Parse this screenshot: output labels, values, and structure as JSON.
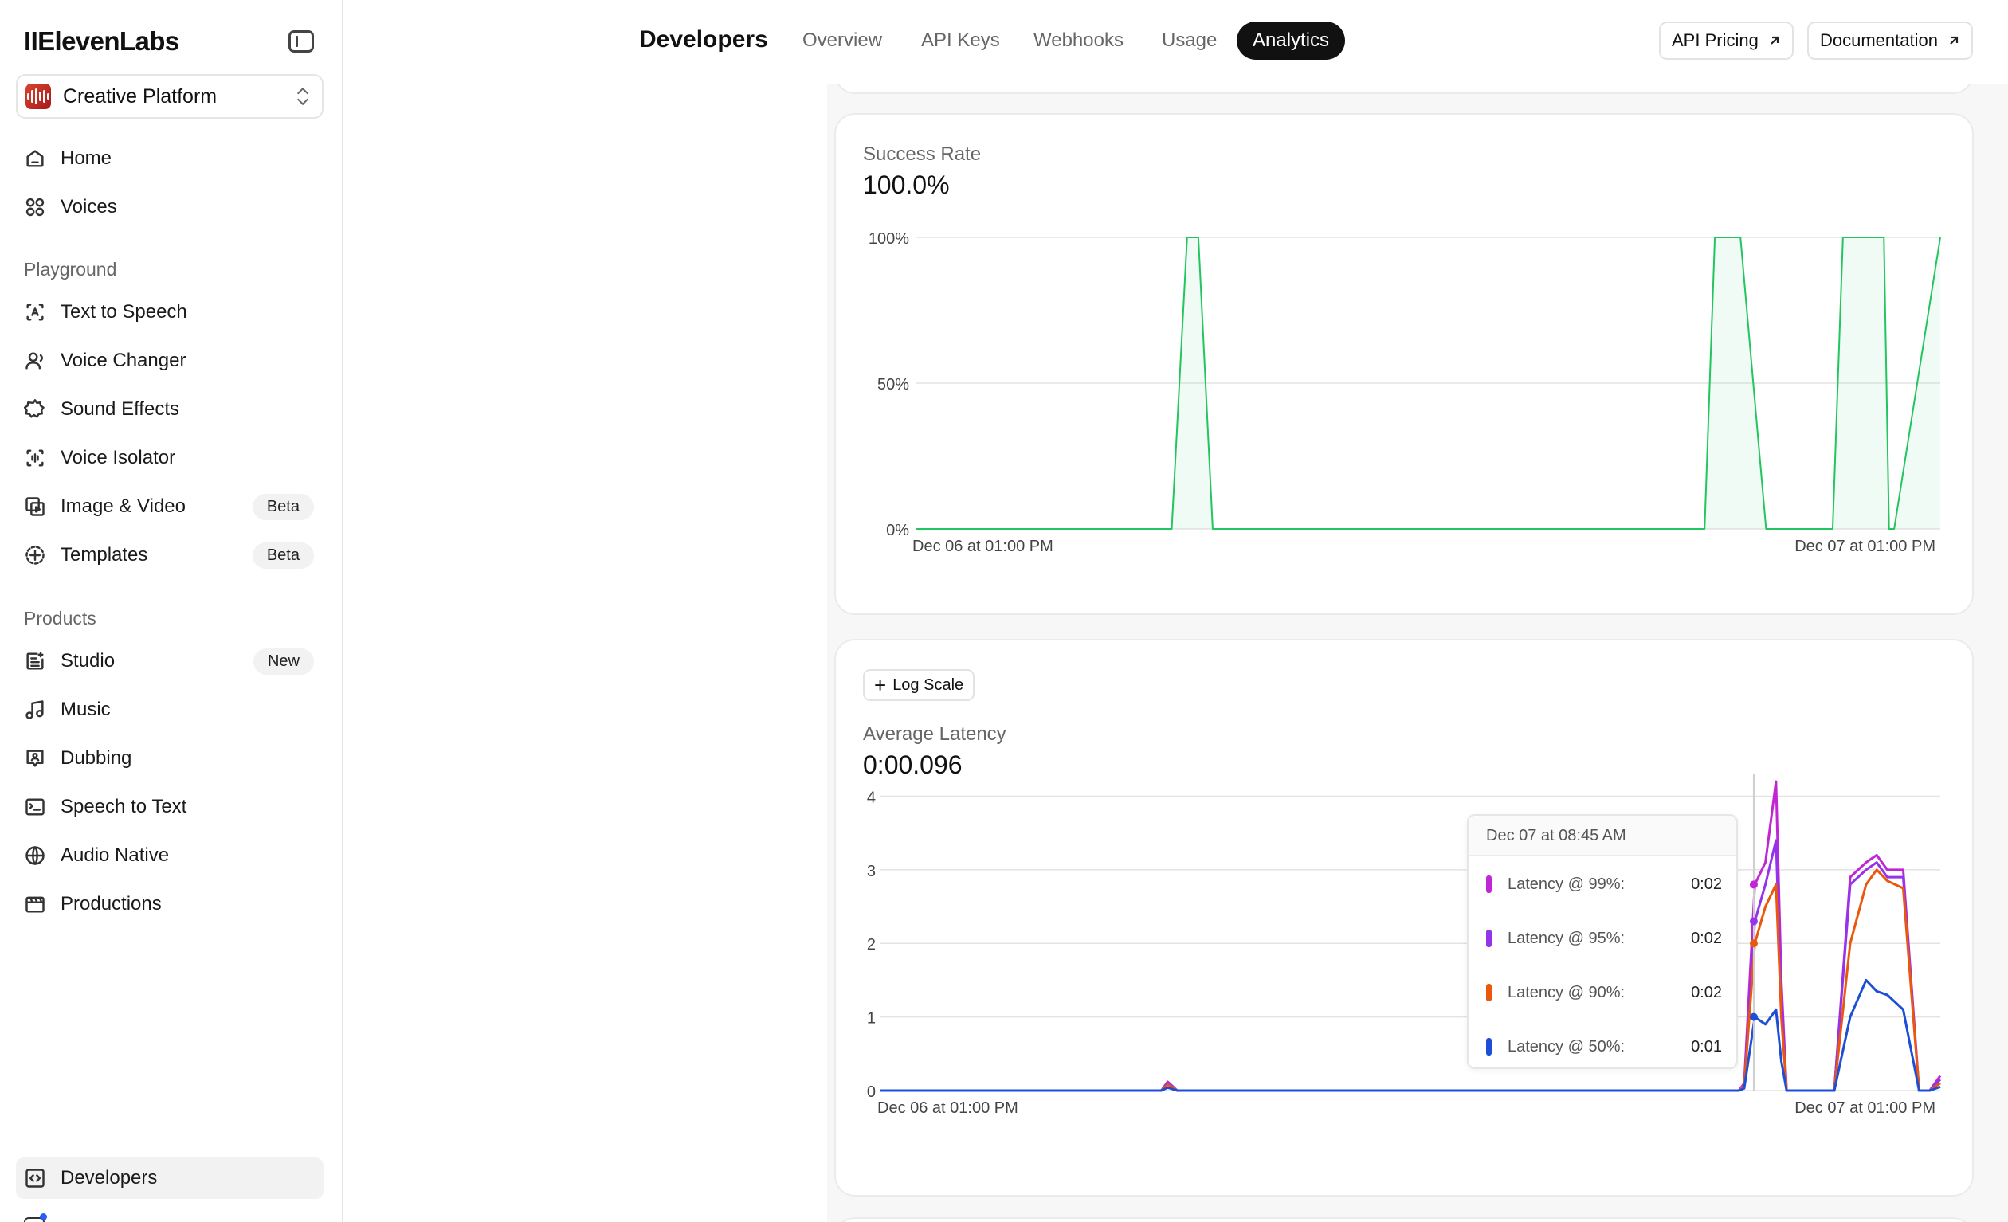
{
  "brand": {
    "logo": "IIElevenLabs"
  },
  "workspace": {
    "name": "Creative Platform"
  },
  "nav": {
    "top": [
      {
        "label": "Home",
        "icon": "home-icon"
      },
      {
        "label": "Voices",
        "icon": "voices-icon"
      }
    ],
    "playground_heading": "Playground",
    "playground": [
      {
        "label": "Text to Speech",
        "icon": "text-to-speech-icon"
      },
      {
        "label": "Voice Changer",
        "icon": "voice-changer-icon"
      },
      {
        "label": "Sound Effects",
        "icon": "sound-effects-icon"
      },
      {
        "label": "Voice Isolator",
        "icon": "voice-isolator-icon"
      },
      {
        "label": "Image & Video",
        "icon": "image-video-icon",
        "badge": "Beta"
      },
      {
        "label": "Templates",
        "icon": "templates-icon",
        "badge": "Beta"
      }
    ],
    "products_heading": "Products",
    "products": [
      {
        "label": "Studio",
        "icon": "studio-icon",
        "badge": "New"
      },
      {
        "label": "Music",
        "icon": "music-icon"
      },
      {
        "label": "Dubbing",
        "icon": "dubbing-icon"
      },
      {
        "label": "Speech to Text",
        "icon": "speech-to-text-icon"
      },
      {
        "label": "Audio Native",
        "icon": "audio-native-icon"
      },
      {
        "label": "Productions",
        "icon": "productions-icon"
      }
    ],
    "bottom": [
      {
        "label": "Developers",
        "icon": "developers-icon",
        "active": true
      }
    ]
  },
  "header": {
    "title": "Developers",
    "tabs": [
      {
        "label": "Overview",
        "active": false
      },
      {
        "label": "API Keys",
        "active": false
      },
      {
        "label": "Webhooks",
        "active": false
      },
      {
        "label": "Usage",
        "active": false
      },
      {
        "label": "Analytics",
        "active": true
      }
    ],
    "links": [
      {
        "label": "API Pricing"
      },
      {
        "label": "Documentation"
      }
    ]
  },
  "success_card": {
    "label": "Success Rate",
    "value": "100.0%"
  },
  "latency_card": {
    "label": "Average Latency",
    "value": "0:00.096",
    "log_scale_label": "Log Scale"
  },
  "tooltip": {
    "title": "Dec 07 at 08:45 AM",
    "rows": [
      {
        "name": "Latency @ 99%:",
        "value": "0:02",
        "color": "#c026d3"
      },
      {
        "name": "Latency @ 95%:",
        "value": "0:02",
        "color": "#9333ea"
      },
      {
        "name": "Latency @ 90%:",
        "value": "0:02",
        "color": "#ea580c"
      },
      {
        "name": "Latency @ 50%:",
        "value": "0:01",
        "color": "#1d4ed8"
      }
    ]
  },
  "chart_data": [
    {
      "type": "area",
      "title": "Success Rate",
      "x_tick_labels": [
        "Dec 06 at 01:00 PM",
        "Dec 07 at 01:00 PM"
      ],
      "y_tick_labels": [
        "100%",
        "50%",
        "0%"
      ],
      "ylim": [
        0,
        100
      ],
      "grid": true,
      "color": "#22c55e",
      "x": [
        0,
        0.25,
        0.265,
        0.276,
        0.29,
        0.77,
        0.78,
        0.805,
        0.83,
        0.895,
        0.905,
        0.945,
        0.95,
        0.955,
        1.0
      ],
      "series": [
        {
          "values": [
            0,
            0,
            100,
            100,
            0,
            0,
            100,
            100,
            0,
            0,
            100,
            100,
            0,
            0,
            100
          ]
        }
      ]
    },
    {
      "type": "line",
      "title": "Average Latency",
      "x_tick_labels": [
        "Dec 06 at 01:00 PM",
        "Dec 07 at 01:00 PM"
      ],
      "y_tick_labels": [
        "4",
        "3",
        "2",
        "1",
        "0"
      ],
      "ylim": [
        0,
        4.2
      ],
      "grid": true,
      "x": [
        0,
        0.265,
        0.271,
        0.28,
        0.81,
        0.815,
        0.825,
        0.835,
        0.845,
        0.85,
        0.855,
        0.9,
        0.915,
        0.93,
        0.94,
        0.95,
        0.965,
        0.98,
        0.99,
        1.0
      ],
      "series": [
        {
          "name": "Latency @ 99%",
          "color": "#c026d3",
          "values": [
            0,
            0,
            0.12,
            0,
            0,
            0.1,
            2.8,
            3.1,
            4.2,
            1.5,
            0,
            0,
            2.9,
            3.1,
            3.2,
            3.0,
            3.0,
            0,
            0,
            0.2
          ]
        },
        {
          "name": "Latency @ 95%",
          "color": "#9333ea",
          "values": [
            0,
            0,
            0.1,
            0,
            0,
            0.08,
            2.3,
            2.8,
            3.4,
            1.2,
            0,
            0,
            2.8,
            3.0,
            3.1,
            2.9,
            2.9,
            0,
            0,
            0.15
          ]
        },
        {
          "name": "Latency @ 90%",
          "color": "#ea580c",
          "values": [
            0,
            0,
            0.08,
            0,
            0,
            0.06,
            2.0,
            2.5,
            2.8,
            1.0,
            0,
            0,
            2.0,
            2.8,
            3.0,
            2.85,
            2.75,
            0,
            0,
            0.1
          ]
        },
        {
          "name": "Latency @ 50%",
          "color": "#1d4ed8",
          "values": [
            0,
            0,
            0.04,
            0,
            0,
            0.03,
            1.0,
            0.9,
            1.1,
            0.4,
            0,
            0,
            1.0,
            1.5,
            1.35,
            1.3,
            1.1,
            0,
            0,
            0.05
          ]
        }
      ]
    }
  ]
}
